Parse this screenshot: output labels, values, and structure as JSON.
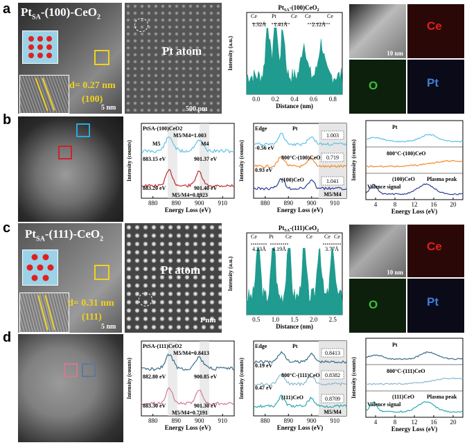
{
  "panels": {
    "a": {
      "label": "a",
      "tem_title": "Pt",
      "tem_title_sub": "SA",
      "tem_title_rest": "-(100)-CeO",
      "tem_title_sub2": "2",
      "d_spacing": "d= 0.27 nm",
      "plane": "(100)",
      "scale_tem": "5 nm",
      "atom_label": "Pt atom",
      "scale_haadf": "500 pm",
      "profile": {
        "title": "Pt",
        "title_sub": "SA",
        "title_rest": "-(100)CeO",
        "title_sub2": "2",
        "peak_labels": [
          "Ce",
          "Pt",
          "Ce",
          "Ce",
          "Ce"
        ],
        "dist_labels": [
          "1.32Å",
          "1.41Å",
          "2.12Å"
        ],
        "xlabel": "Distance (nm)",
        "ylabel": "Intensity (a.u.)",
        "xticks": [
          "0.0",
          "0.2",
          "0.4",
          "0.6",
          "0.8"
        ]
      },
      "map_scale": "10 nm",
      "map_labels": [
        "Ce",
        "O",
        "Pt"
      ]
    },
    "b": {
      "label": "b",
      "eels": {
        "title": "Pt",
        "title_sub": "SA",
        "title_rest": "-(100)CeO",
        "title_sub2": "2",
        "m5": "M5",
        "m4": "M4",
        "ratio_top": "M5/M4=1.003",
        "ratio_bottom": "M5/M4=0.8923",
        "e1": "883.15 eV",
        "e2": "901.37 eV",
        "e3": "883.20 eV",
        "e4": "901.40 eV",
        "xlabel": "Energy Loss (eV)",
        "ylabel": "Intensity (counts)",
        "xticks": [
          "880",
          "890",
          "900",
          "910"
        ]
      },
      "edge": {
        "edge_label": "Edge",
        "series": [
          "Pt",
          "800°C-(100)CeO",
          "(100)CeO"
        ],
        "shifts": [
          "-0.56 eV",
          "0.93 eV"
        ],
        "ratios": [
          "1.003",
          "0.719",
          "1.041"
        ],
        "ratio_label": "M5/M4",
        "xlabel": "Energy Loss (eV)",
        "ylabel": "Intensity (counts)",
        "xticks": [
          "880",
          "890",
          "900",
          "910"
        ]
      },
      "lowloss": {
        "labels": [
          "Pt",
          "800°C-(100)CeO",
          "(100)CeO"
        ],
        "plasma": "Plasma peak",
        "valence": "Valence signal",
        "xlabel": "Energy Loss (eV)",
        "ylabel": "Intensity (counts)",
        "xticks": [
          "4",
          "8",
          "12",
          "16",
          "20"
        ]
      }
    },
    "c": {
      "label": "c",
      "tem_title_rest": "-(111)-CeO",
      "d_spacing": "d= 0.31 nm",
      "plane": "(111)",
      "scale_tem": "5 nm",
      "atom_label": "Pt atom",
      "scale_haadf": "1 nm",
      "profile": {
        "title_rest": "-(111)CeO",
        "peak_labels": [
          "Ce",
          "Pt",
          "Ce",
          "Ce",
          "Ce",
          "Ce"
        ],
        "dist_labels": [
          "4.23Å",
          "4.19Å",
          "3.77Å"
        ],
        "xlabel": "Distance (nm)",
        "ylabel": "Intensity (a.u.)",
        "xticks": [
          "0.5",
          "1.0",
          "1.5",
          "2.0",
          "2.5"
        ]
      },
      "map_scale": "10 nm",
      "map_labels": [
        "Ce",
        "O",
        "Pt"
      ]
    },
    "d": {
      "label": "d",
      "eels": {
        "title_rest": "-(111)CeO",
        "ratio_top": "M5/M4=0.8413",
        "ratio_bottom": "M5/M4=0.7191",
        "e1": "882.80 eV",
        "e2": "900.85 eV",
        "e3": "883.30 eV",
        "e4": "901.30 eV",
        "xlabel": "Energy Loss (eV)",
        "ylabel": "Intensity (counts)",
        "xticks": [
          "880",
          "890",
          "900",
          "910"
        ]
      },
      "edge": {
        "edge_label": "Edge",
        "series": [
          "Pt",
          "800°C-(111)CeO",
          "(111)CeO"
        ],
        "shifts": [
          "0.19 eV",
          "0.47 eV"
        ],
        "ratios": [
          "0.8413",
          "0.8382",
          "0.8709"
        ],
        "ratio_label": "M5/M4",
        "xlabel": "Energy Loss (eV)",
        "ylabel": "Intensity (counts)",
        "xticks": [
          "880",
          "890",
          "900",
          "910"
        ]
      },
      "lowloss": {
        "labels": [
          "Pt",
          "800°C-(111)CeO",
          "(111)CeO"
        ],
        "plasma": "Plasma peak",
        "valence": "Valence signal",
        "xlabel": "Energy Loss (eV)",
        "ylabel": "Intensity (counts)",
        "xticks": [
          "4",
          "8",
          "12",
          "16",
          "20"
        ]
      }
    }
  },
  "colors": {
    "teal": "#1f9b8f",
    "lightblue": "#5cc2e6",
    "orange": "#f08a2c",
    "red": "#c0282c",
    "navy": "#2a3d8f",
    "yellow": "#f2d21c",
    "ce_red": "#e0211b",
    "o_green": "#3cbf3c",
    "pt_blue": "#3d7fd8"
  }
}
